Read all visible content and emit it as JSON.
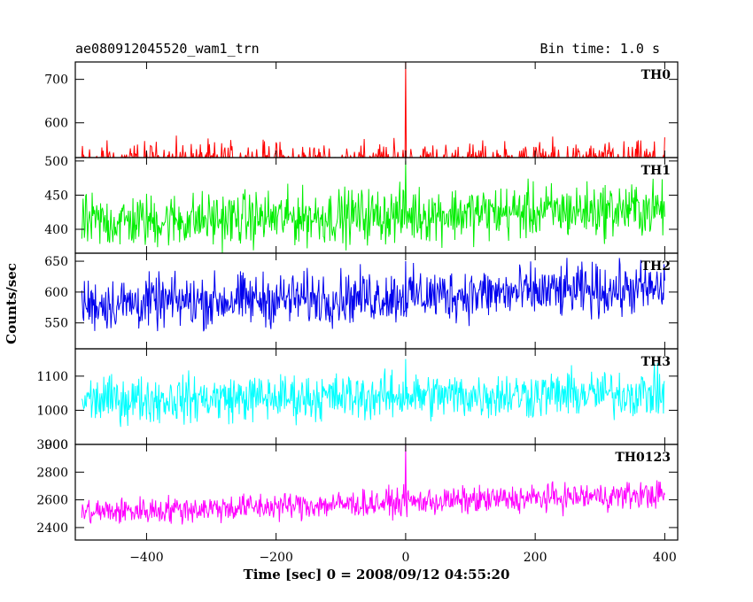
{
  "header": {
    "title": "ae080912045520_wam1_trn",
    "bin_time": "Bin time: 1.0 s"
  },
  "chart_data": {
    "type": "line",
    "title": "ae080912045520_wam1_trn",
    "subtitle": "Bin time: 1.0 s",
    "xlabel": "Time [sec] 0 = 2008/09/12 04:55:20",
    "ylabel": "Counts/sec",
    "xlim": [
      -510,
      420
    ],
    "xticks": [
      -400,
      -200,
      0,
      200,
      400
    ],
    "x_range": [
      -500,
      400
    ],
    "panels": [
      {
        "name": "TH0",
        "color": "#ff0000",
        "ylim": [
          520,
          740
        ],
        "yticks": [
          500,
          600,
          700
        ],
        "base_start": 505,
        "base_end": 505,
        "amp": 35,
        "spike_x": 0,
        "spike_y": 740
      },
      {
        "name": "TH1",
        "color": "#00ee00",
        "ylim": [
          365,
          505
        ],
        "yticks": [
          400,
          450,
          500
        ],
        "base_start": 410,
        "base_end": 430,
        "amp": 28,
        "spike_x": 0,
        "spike_y": 500
      },
      {
        "name": "TH2",
        "color": "#0000ee",
        "ylim": [
          508,
          663
        ],
        "yticks": [
          550,
          600,
          650
        ],
        "base_start": 580,
        "base_end": 605,
        "amp": 30,
        "spike_x": 0,
        "spike_y": 650
      },
      {
        "name": "TH3",
        "color": "#00ffff",
        "ylim": [
          900,
          1180
        ],
        "yticks": [
          900,
          1000,
          1100
        ],
        "base_start": 1030,
        "base_end": 1050,
        "amp": 48,
        "spike_x": 0,
        "spike_y": 1150
      },
      {
        "name": "TH0123",
        "color": "#ff00ff",
        "ylim": [
          2310,
          3000
        ],
        "yticks": [
          2400,
          2600,
          2800,
          3000
        ],
        "base_start": 2510,
        "base_end": 2640,
        "amp": 70,
        "spike_x": 0,
        "spike_y": 3000
      }
    ]
  }
}
